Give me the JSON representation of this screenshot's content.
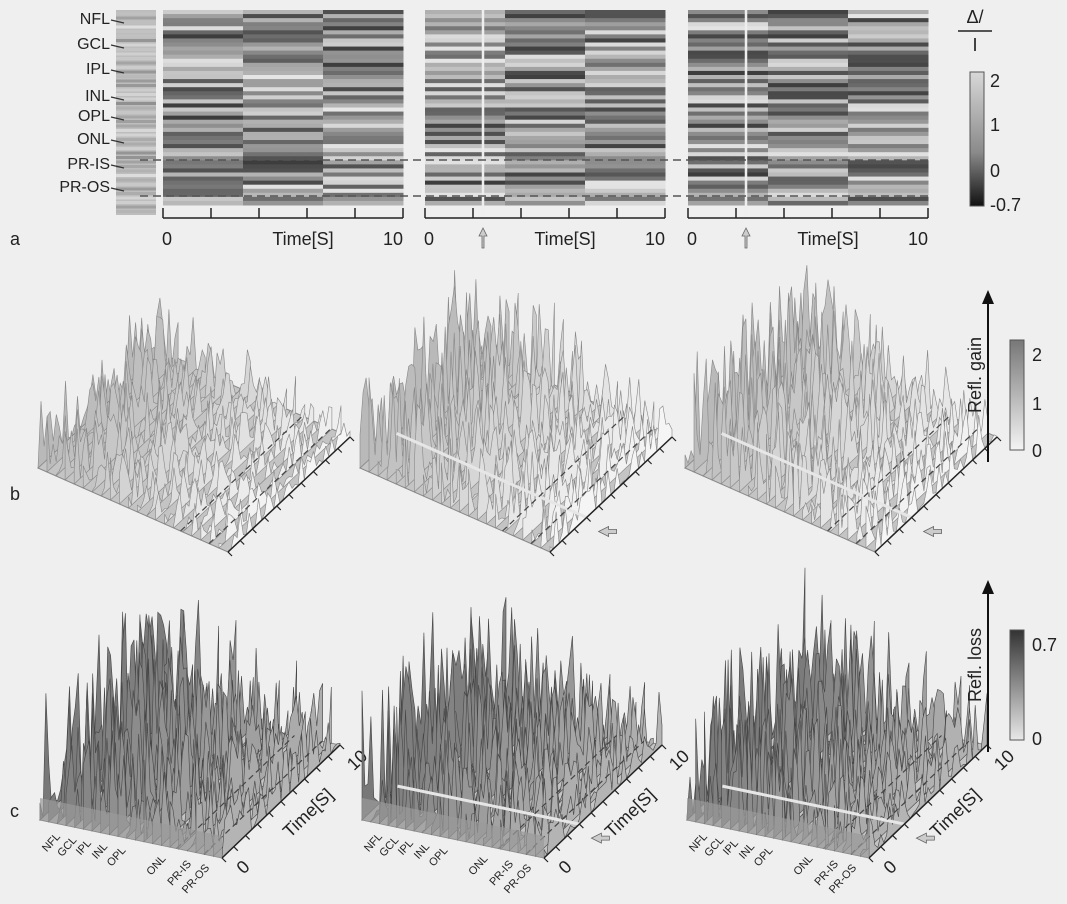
{
  "panel_labels": [
    "a",
    "b",
    "c"
  ],
  "panel_a": {
    "layers": [
      "NFL",
      "GCL",
      "IPL",
      "INL",
      "OPL",
      "ONL",
      "PR-IS",
      "PR-OS"
    ],
    "plots": [
      {
        "x_start": "0",
        "x_label": "Time[S]",
        "x_end": "10"
      },
      {
        "x_start": "0",
        "x_label": "Time[S]",
        "x_end": "10"
      },
      {
        "x_start": "0",
        "x_label": "Time[S]",
        "x_end": "10"
      }
    ],
    "colorbar": {
      "label_top": "Δ/",
      "label_bottom": "I",
      "ticks": [
        "2",
        "1",
        "0",
        "-0.7"
      ]
    }
  },
  "panel_b": {
    "colorbar": {
      "label": "Refl. gain",
      "ticks": [
        "2",
        "1",
        "0"
      ]
    }
  },
  "panel_c": {
    "colorbar": {
      "label": "Refl. loss",
      "ticks": [
        "0.7",
        "0"
      ]
    },
    "plots": [
      {
        "layers": [
          "NFL",
          "GCL",
          "IPL",
          "INL",
          "OPL",
          "ONL",
          "PR-IS",
          "PR-OS"
        ],
        "time_label": "Time[S]",
        "time_start": "0",
        "time_end": "10"
      },
      {
        "layers": [
          "NFL",
          "GCL",
          "IPL",
          "INL",
          "OPL",
          "ONL",
          "PR-IS",
          "PR-OS"
        ],
        "time_label": "Time[S]",
        "time_start": "0",
        "time_end": "10"
      },
      {
        "layers": [
          "NFL",
          "GCL",
          "IPL",
          "INL",
          "OPL",
          "ONL",
          "PR-IS",
          "PR-OS"
        ],
        "time_label": "Time[S]",
        "time_start": "0",
        "time_end": "10"
      }
    ]
  }
}
